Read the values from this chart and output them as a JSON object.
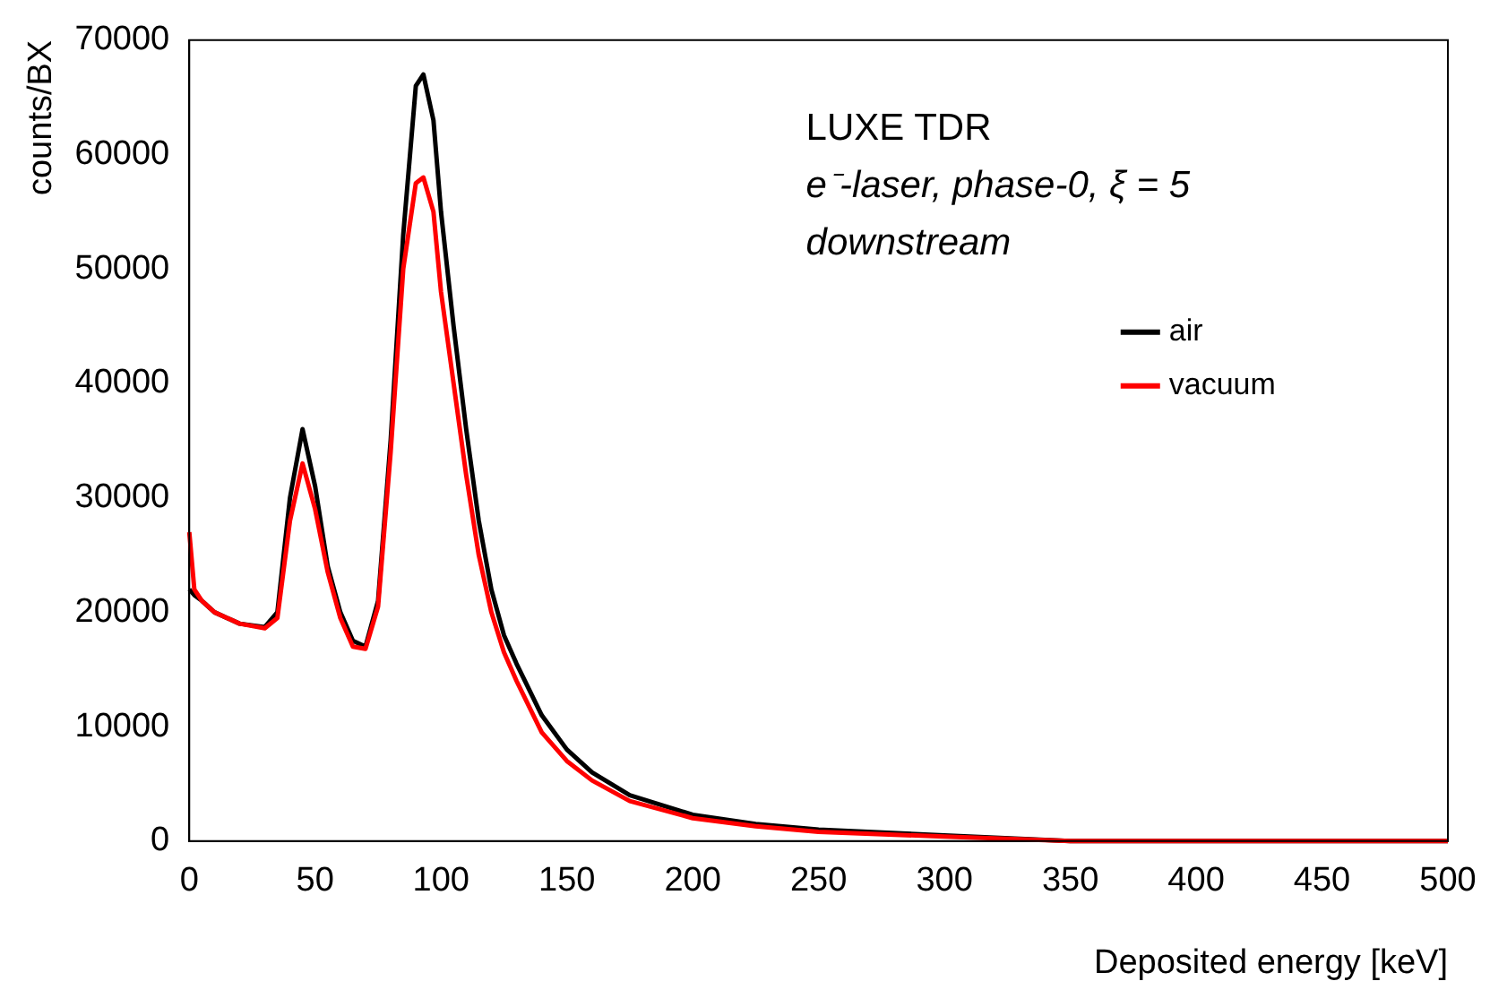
{
  "chart_data": {
    "type": "line",
    "xlabel": "Deposited energy [keV]",
    "ylabel": "counts/BX",
    "annotations": [
      "LUXE TDR",
      "e⁻-laser, phase-0, ξ = 5",
      "downstream"
    ],
    "x": [
      0,
      2,
      5,
      10,
      20,
      30,
      35,
      40,
      45,
      50,
      55,
      60,
      65,
      70,
      75,
      80,
      85,
      90,
      93,
      97,
      100,
      105,
      110,
      115,
      120,
      125,
      130,
      140,
      150,
      160,
      175,
      200,
      225,
      250,
      300,
      350,
      400,
      450,
      500
    ],
    "series": [
      {
        "name": "air",
        "color": "#000000",
        "values": [
          22000,
          21500,
          21000,
          20000,
          19000,
          18700,
          20000,
          30000,
          36000,
          31000,
          24000,
          20000,
          17500,
          17000,
          21000,
          35000,
          53000,
          66000,
          67000,
          63000,
          55000,
          45000,
          36000,
          28000,
          22000,
          18000,
          15500,
          11000,
          8000,
          6000,
          4000,
          2300,
          1500,
          1000,
          500,
          0,
          0,
          0,
          0
        ]
      },
      {
        "name": "vacuum",
        "color": "#ff0000",
        "values": [
          27000,
          22000,
          21000,
          20000,
          19000,
          18600,
          19500,
          28000,
          33000,
          29000,
          23500,
          19500,
          17000,
          16800,
          20500,
          34000,
          50000,
          57500,
          58000,
          55000,
          48000,
          40000,
          32000,
          25000,
          20000,
          16500,
          14000,
          9500,
          7000,
          5300,
          3500,
          2000,
          1300,
          800,
          400,
          0,
          0,
          0,
          0
        ]
      }
    ],
    "xlim": [
      0,
      500
    ],
    "xticks": [
      0,
      50,
      100,
      150,
      200,
      250,
      300,
      350,
      400,
      450,
      500
    ],
    "ylim": [
      0,
      70000
    ],
    "yticks": [
      0,
      10000,
      20000,
      30000,
      40000,
      50000,
      60000,
      70000
    ],
    "legend": "top right",
    "grid": false,
    "line_style": "solid",
    "marker": "none"
  }
}
